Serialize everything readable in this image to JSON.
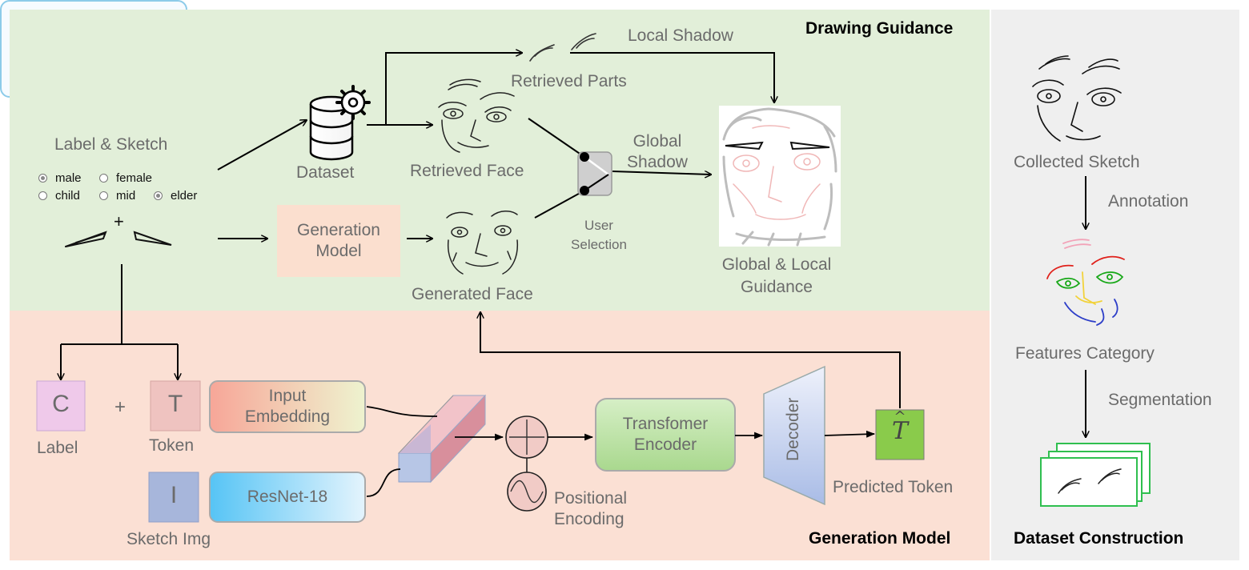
{
  "sections": {
    "drawing_guidance": "Drawing Guidance",
    "generation_model": "Generation Model",
    "dataset_construction": "Dataset Construction"
  },
  "drawing": {
    "label_sketch": "Label & Sketch",
    "options": {
      "male": "male",
      "female": "female",
      "child": "child",
      "mid": "mid",
      "elder": "elder",
      "plus": "+"
    },
    "dataset": "Dataset",
    "retrieved_face": "Retrieved Face",
    "retrieved_parts": "Retrieved Parts",
    "local_shadow": "Local Shadow",
    "global_shadow_line1": "Global",
    "global_shadow_line2": "Shadow",
    "user_selection_line1": "User",
    "user_selection_line2": "Selection",
    "generation_model_box_line1": "Generation",
    "generation_model_box_line2": "Model",
    "generated_face": "Generated Face",
    "guidance_line1": "Global & Local",
    "guidance_line2": "Guidance"
  },
  "generation": {
    "c_letter": "C",
    "t_letter": "T",
    "i_letter": "I",
    "plus": "+",
    "label": "Label",
    "token": "Token",
    "sketch_img": "Sketch Img",
    "input_embedding_line1": "Input",
    "input_embedding_line2": "Embedding",
    "resnet": "ResNet-18",
    "transformer_line1": "Transfomer",
    "transformer_line2": "Encoder",
    "decoder": "Decoder",
    "t_hat": "T",
    "predicted_token": "Predicted Token",
    "positional_line1": "Positional",
    "positional_line2": "Encoding"
  },
  "dataset": {
    "collected_sketch": "Collected Sketch",
    "annotation": "Annotation",
    "features_category": "Features Category",
    "segmentation": "Segmentation"
  },
  "colors": {
    "drawing_bg": "#e2efd9",
    "generation_bg": "#fbe0d4",
    "dataset_bg": "#efefef",
    "label_box_border": "#8ccbe9",
    "c_block": "#efc9ea",
    "t_block": "#efc3c0",
    "i_block": "#a7b6db",
    "t_hat_block": "#8acb4b",
    "seg_green": "#2fbf4f"
  }
}
